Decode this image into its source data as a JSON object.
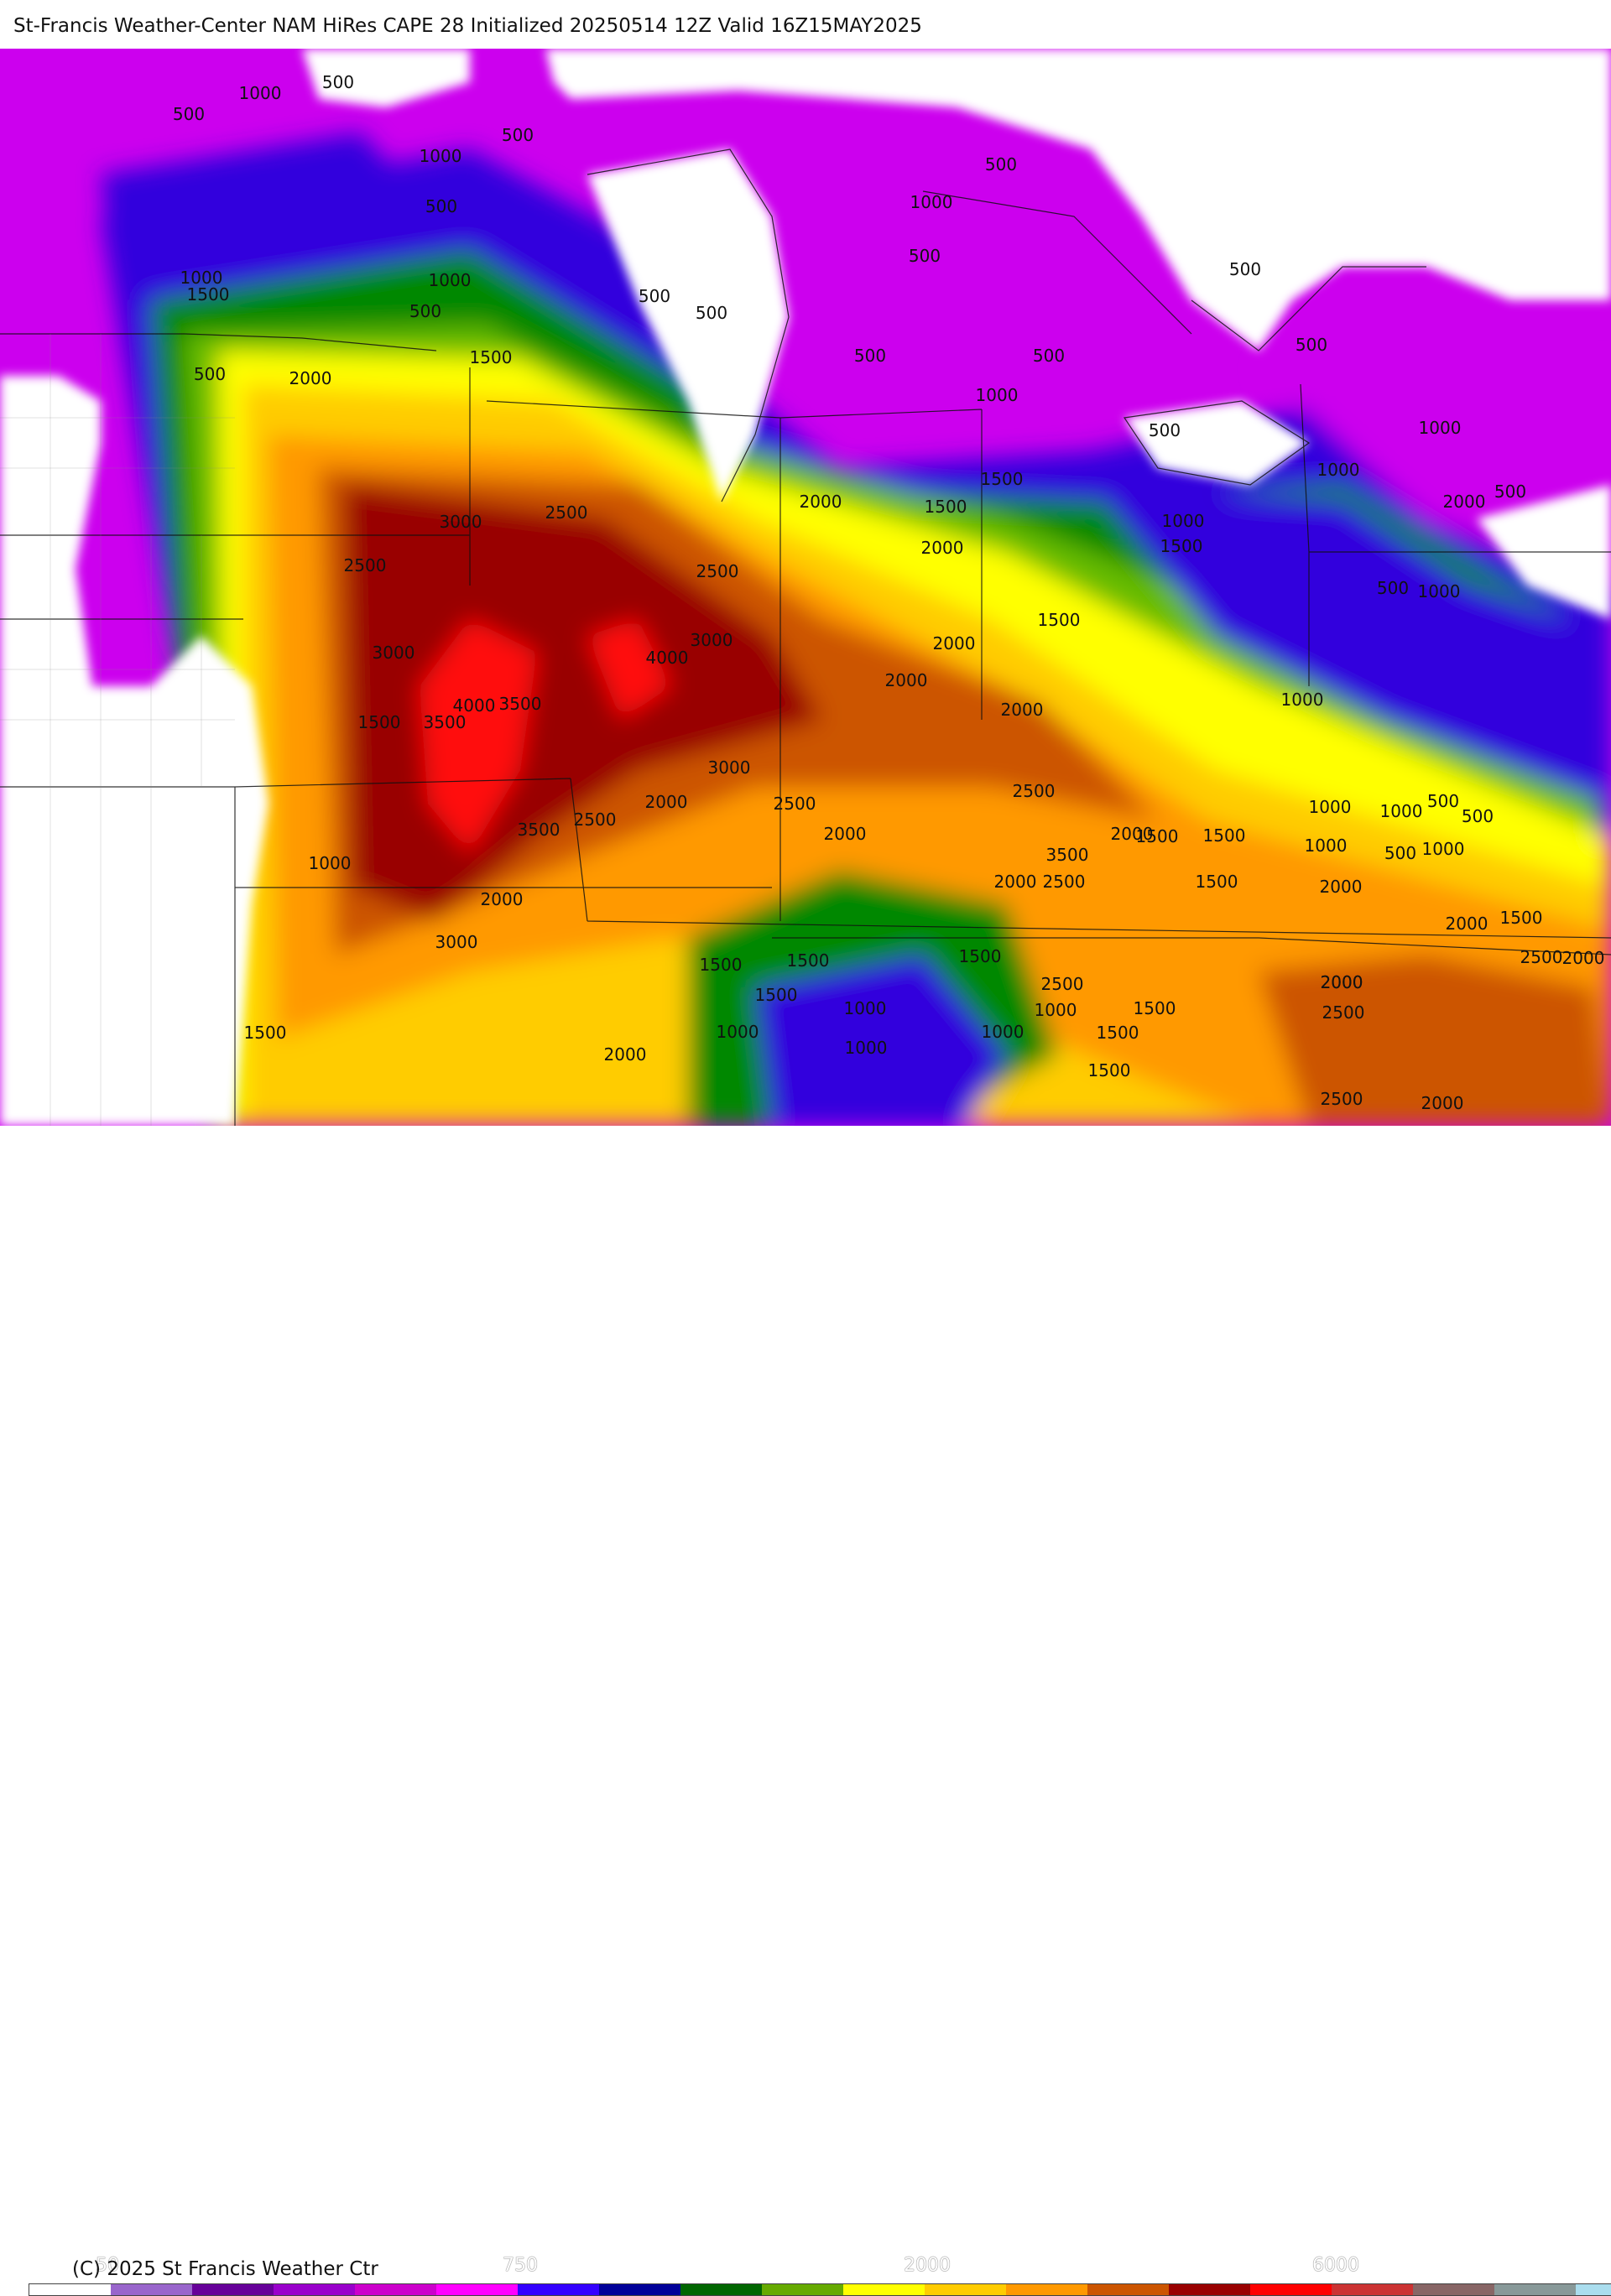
{
  "header": {
    "title": "St-Francis Weather-Center NAM HiRes CAPE  28 Initialized 20250514 12Z Valid 16Z15MAY2025"
  },
  "footer": {
    "copyright": "(C) 2025 St Francis Weather Ctr",
    "colorbar_ticks": [
      "50",
      "750",
      "2000",
      "6000"
    ]
  },
  "colorbar_colors": [
    "#ffffff",
    "#9966cc",
    "#660099",
    "#9900cc",
    "#cc00cc",
    "#ff00ff",
    "#3300ff",
    "#000099",
    "#006600",
    "#66aa00",
    "#ffff00",
    "#ffcc00",
    "#ff9900",
    "#cc5500",
    "#990000",
    "#ff0000",
    "#cc3333",
    "#886666",
    "#889999",
    "#aaddee"
  ],
  "contour_labels": [
    "500",
    "1000",
    "500",
    "1000",
    "500",
    "500",
    "1000",
    "1500",
    "500",
    "1000",
    "500",
    "500",
    "1000",
    "500",
    "500",
    "1500",
    "2000",
    "500",
    "500",
    "500",
    "500",
    "500",
    "500",
    "1000",
    "1500",
    "2000",
    "1000",
    "2000",
    "1500",
    "1000",
    "3000",
    "2500",
    "2500",
    "1500",
    "2000",
    "500",
    "1000",
    "1000",
    "2500",
    "500",
    "3000",
    "3000",
    "4000",
    "2000",
    "2000",
    "1500",
    "2000",
    "3500",
    "4000",
    "3500",
    "1500",
    "1000",
    "3500",
    "1000",
    "3000",
    "2000",
    "2500",
    "2000",
    "1500",
    "2500",
    "2000",
    "1000",
    "1000",
    "500",
    "1500",
    "2000",
    "3500",
    "2500",
    "2000",
    "1000",
    "500",
    "500",
    "1000",
    "2000",
    "1500",
    "2500",
    "2000",
    "2000",
    "1500",
    "2500",
    "3000",
    "1500",
    "1500",
    "1500",
    "1500",
    "2000",
    "2500",
    "1000",
    "2000",
    "1500",
    "1000",
    "1500",
    "1000",
    "1500",
    "2000",
    "1000",
    "1000",
    "1500",
    "2500",
    "2000",
    "2500"
  ]
}
